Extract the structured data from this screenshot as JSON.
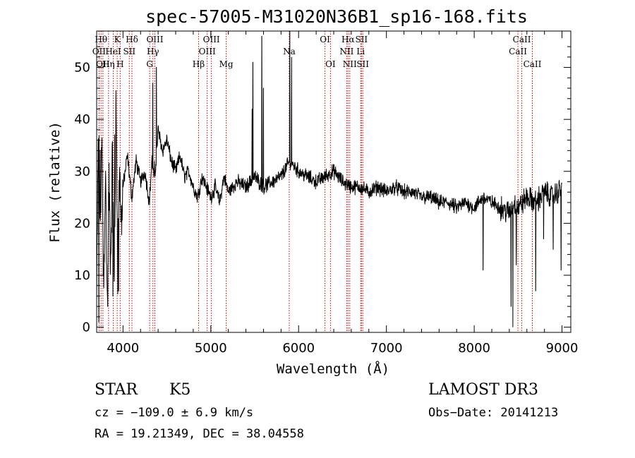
{
  "chart_data": {
    "type": "line",
    "title": "spec-57005-M31020N36B1_sp16-168.fits",
    "xlabel": "Wavelength (Å)",
    "ylabel": "Flux (relative)",
    "xlim": [
      3700,
      9100
    ],
    "ylim": [
      -1,
      57
    ],
    "x_ticks": [
      4000,
      5000,
      6000,
      7000,
      8000,
      9000
    ],
    "y_ticks": [
      0,
      10,
      20,
      30,
      40,
      50
    ],
    "grid": false,
    "colors": {
      "spectrum": "#000000",
      "lines": "#cc0000"
    },
    "spectrum_anchors": [
      [
        3700,
        5
      ],
      [
        3720,
        38
      ],
      [
        3740,
        20
      ],
      [
        3760,
        35
      ],
      [
        3780,
        8
      ],
      [
        3800,
        30
      ],
      [
        3820,
        5
      ],
      [
        3840,
        28
      ],
      [
        3860,
        12
      ],
      [
        3880,
        33
      ],
      [
        3900,
        8
      ],
      [
        3920,
        42
      ],
      [
        3940,
        12
      ],
      [
        3960,
        30
      ],
      [
        3980,
        20
      ],
      [
        4000,
        27
      ],
      [
        4050,
        33
      ],
      [
        4100,
        25
      ],
      [
        4150,
        32
      ],
      [
        4200,
        28
      ],
      [
        4250,
        30
      ],
      [
        4300,
        24
      ],
      [
        4330,
        32
      ],
      [
        4360,
        28
      ],
      [
        4400,
        38
      ],
      [
        4450,
        34
      ],
      [
        4500,
        36
      ],
      [
        4550,
        32
      ],
      [
        4600,
        30
      ],
      [
        4650,
        33
      ],
      [
        4700,
        29
      ],
      [
        4750,
        30
      ],
      [
        4800,
        27
      ],
      [
        4850,
        25
      ],
      [
        4900,
        29
      ],
      [
        4950,
        27
      ],
      [
        5000,
        25
      ],
      [
        5050,
        27
      ],
      [
        5100,
        24
      ],
      [
        5150,
        29
      ],
      [
        5200,
        26
      ],
      [
        5300,
        28
      ],
      [
        5400,
        27
      ],
      [
        5500,
        29
      ],
      [
        5600,
        27
      ],
      [
        5700,
        28
      ],
      [
        5800,
        29
      ],
      [
        5900,
        32
      ],
      [
        6000,
        30
      ],
      [
        6100,
        29
      ],
      [
        6200,
        28
      ],
      [
        6300,
        29
      ],
      [
        6400,
        30
      ],
      [
        6500,
        28
      ],
      [
        6600,
        27
      ],
      [
        6700,
        27
      ],
      [
        6800,
        26
      ],
      [
        6900,
        27
      ],
      [
        7000,
        26
      ],
      [
        7100,
        27
      ],
      [
        7200,
        26
      ],
      [
        7300,
        26
      ],
      [
        7400,
        25
      ],
      [
        7500,
        25
      ],
      [
        7600,
        24
      ],
      [
        7700,
        24
      ],
      [
        7800,
        23
      ],
      [
        7900,
        24
      ],
      [
        8000,
        23
      ],
      [
        8100,
        25
      ],
      [
        8200,
        24
      ],
      [
        8300,
        23
      ],
      [
        8400,
        22
      ],
      [
        8450,
        24
      ],
      [
        8500,
        23
      ],
      [
        8600,
        25
      ],
      [
        8700,
        24
      ],
      [
        8800,
        26
      ],
      [
        8900,
        25
      ],
      [
        9000,
        27
      ]
    ],
    "spectrum_features": [
      [
        3725,
        1
      ],
      [
        3740,
        34
      ],
      [
        3775,
        10
      ],
      [
        3790,
        16
      ],
      [
        3805,
        26
      ],
      [
        3825,
        4
      ],
      [
        3860,
        14
      ],
      [
        3885,
        6
      ],
      [
        3905,
        37
      ],
      [
        3935,
        22
      ],
      [
        3950,
        7
      ],
      [
        4340,
        47
      ],
      [
        4360,
        32
      ],
      [
        4380,
        50
      ],
      [
        5470,
        42
      ],
      [
        5480,
        51
      ],
      [
        5580,
        56
      ],
      [
        5600,
        46
      ],
      [
        5900,
        57
      ],
      [
        5920,
        52
      ],
      [
        8100,
        11
      ],
      [
        8420,
        4
      ],
      [
        8440,
        0
      ],
      [
        8480,
        12
      ],
      [
        8640,
        25
      ],
      [
        8700,
        7
      ],
      [
        8790,
        17
      ],
      [
        8900,
        15
      ],
      [
        8990,
        11
      ]
    ],
    "lines": [
      {
        "x": 3727,
        "label": "OII",
        "row": 2
      },
      {
        "x": 3750,
        "label": "Hθ",
        "row": 1
      },
      {
        "x": 3771,
        "label": "OII",
        "row": 3
      },
      {
        "x": 3835,
        "label": "Hη",
        "row": 3
      },
      {
        "x": 3889,
        "label": "HeI",
        "row": 2
      },
      {
        "x": 3934,
        "label": "K",
        "row": 1
      },
      {
        "x": 3968,
        "label": "H",
        "row": 3
      },
      {
        "x": 4072,
        "label": "SII",
        "row": 2
      },
      {
        "x": 4102,
        "label": "Hδ",
        "row": 1
      },
      {
        "x": 4304,
        "label": "G",
        "row": 3
      },
      {
        "x": 4341,
        "label": "Hγ",
        "row": 2
      },
      {
        "x": 4363,
        "label": "OIII",
        "row": 1
      },
      {
        "x": 4861,
        "label": "Hβ",
        "row": 3
      },
      {
        "x": 4959,
        "label": "OIII",
        "row": 2
      },
      {
        "x": 5007,
        "label": "OIII",
        "row": 1
      },
      {
        "x": 5175,
        "label": "Mg",
        "row": 3
      },
      {
        "x": 5893,
        "label": "Na",
        "row": 2
      },
      {
        "x": 6300,
        "label": "OI",
        "row": 1
      },
      {
        "x": 6363,
        "label": "OI",
        "row": 3
      },
      {
        "x": 6548,
        "label": "NII",
        "row": 2
      },
      {
        "x": 6563,
        "label": "Hα",
        "row": 1
      },
      {
        "x": 6583,
        "label": "NII",
        "row": 3
      },
      {
        "x": 6707,
        "label": "Li",
        "row": 2
      },
      {
        "x": 6716,
        "label": "SII",
        "row": 1
      },
      {
        "x": 6731,
        "label": "SII",
        "row": 3
      },
      {
        "x": 8498,
        "label": "CaII",
        "row": 2
      },
      {
        "x": 8542,
        "label": "CaII",
        "row": 1
      },
      {
        "x": 8662,
        "label": "CaII",
        "row": 3
      }
    ]
  },
  "info": {
    "object_class": "STAR",
    "subclass": "K5",
    "survey": "LAMOST DR3",
    "cz": "cz = −109.0 ± 6.9 km/s",
    "obs_date": "Obs−Date: 20141213",
    "coords": "RA =  19.21349, DEC =  38.04558"
  }
}
